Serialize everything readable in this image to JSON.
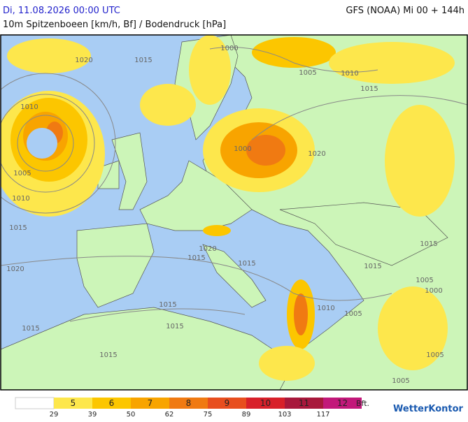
{
  "header": {
    "title": "Di, 11.08.2026 00:00 UTC",
    "subtitle": "10m Spitzenboeen [km/h, Bf] / Bodendruck [hPa]",
    "model": "GFS (NOAA) Mi 00 + 144h"
  },
  "isobar_labels": [
    "1020",
    "1015",
    "1000",
    "1005",
    "1010",
    "1015",
    "1010",
    "1005",
    "1010",
    "1015",
    "1020",
    "1000",
    "1020",
    "1015",
    "1015",
    "1020",
    "1015",
    "1015",
    "1015",
    "1015",
    "1010",
    "1005",
    "1015",
    "1015",
    "1005",
    "1000",
    "1005",
    "1005"
  ],
  "legend": {
    "empty_color": "#ffffff",
    "classes": [
      {
        "label": "5",
        "color": "#fde74c"
      },
      {
        "label": "6",
        "color": "#fcc600"
      },
      {
        "label": "7",
        "color": "#f8a400"
      },
      {
        "label": "8",
        "color": "#f07a12"
      },
      {
        "label": "9",
        "color": "#e84e1e"
      },
      {
        "label": "10",
        "color": "#d8202a"
      },
      {
        "label": "11",
        "color": "#a8183c"
      },
      {
        "label": "12",
        "color": "#c2187a"
      }
    ],
    "thresholds": [
      29,
      39,
      50,
      62,
      75,
      89,
      103,
      117
    ],
    "unit": "Bft."
  },
  "brand": "WetterKontor"
}
